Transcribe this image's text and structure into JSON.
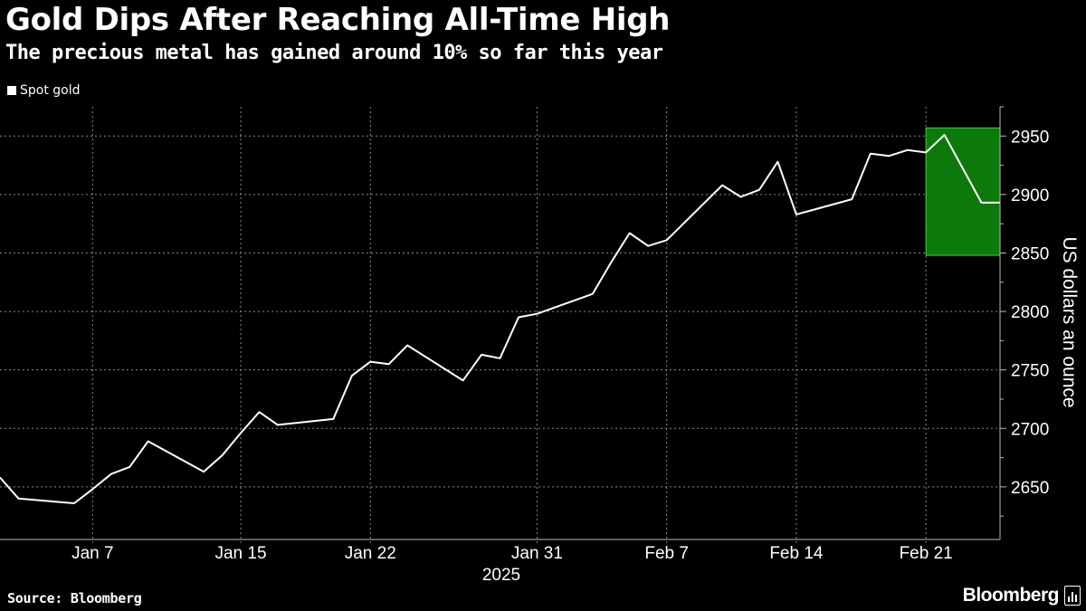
{
  "header": {
    "title": "Gold Dips After Reaching All-Time High",
    "subtitle": "The precious metal has gained around 10% so far this year"
  },
  "footer": {
    "source": "Source: Bloomberg",
    "brand": "Bloomberg"
  },
  "colors": {
    "background": "#000000",
    "line": "#ffffff",
    "highlight_fill": "#0b7a0b",
    "highlight_stroke": "#3cd13c",
    "grid": "#8a8a8a"
  },
  "chart_data": {
    "type": "line",
    "title": "Gold Dips After Reaching All-Time High",
    "subtitle": "The precious metal has gained around 10% so far this year",
    "ylabel": "US dollars an ounce",
    "xlabel": "2025",
    "ylim": [
      2605,
      2975
    ],
    "y_ticks": [
      2650,
      2700,
      2750,
      2800,
      2850,
      2900,
      2950
    ],
    "x_ticks": [
      {
        "date": "2025-01-07",
        "label": "Jan 7"
      },
      {
        "date": "2025-01-15",
        "label": "Jan 15"
      },
      {
        "date": "2025-01-22",
        "label": "Jan 22"
      },
      {
        "date": "2025-01-31",
        "label": "Jan 31"
      },
      {
        "date": "2025-02-07",
        "label": "Feb 7"
      },
      {
        "date": "2025-02-14",
        "label": "Feb 14"
      },
      {
        "date": "2025-02-21",
        "label": "Feb 21"
      }
    ],
    "x_range": [
      "2025-01-02",
      "2025-02-25"
    ],
    "year_label": "2025",
    "grid": true,
    "legend_position": "top-left",
    "series": [
      {
        "name": "Spot gold",
        "color": "#ffffff",
        "points": [
          {
            "x": "2025-01-02",
            "y": 2658
          },
          {
            "x": "2025-01-03",
            "y": 2640
          },
          {
            "x": "2025-01-06",
            "y": 2636
          },
          {
            "x": "2025-01-07",
            "y": 2648
          },
          {
            "x": "2025-01-08",
            "y": 2661
          },
          {
            "x": "2025-01-09",
            "y": 2667
          },
          {
            "x": "2025-01-10",
            "y": 2689
          },
          {
            "x": "2025-01-13",
            "y": 2663
          },
          {
            "x": "2025-01-14",
            "y": 2677
          },
          {
            "x": "2025-01-15",
            "y": 2696
          },
          {
            "x": "2025-01-16",
            "y": 2714
          },
          {
            "x": "2025-01-17",
            "y": 2703
          },
          {
            "x": "2025-01-20",
            "y": 2708
          },
          {
            "x": "2025-01-21",
            "y": 2745
          },
          {
            "x": "2025-01-22",
            "y": 2757
          },
          {
            "x": "2025-01-23",
            "y": 2755
          },
          {
            "x": "2025-01-24",
            "y": 2771
          },
          {
            "x": "2025-01-27",
            "y": 2741
          },
          {
            "x": "2025-01-28",
            "y": 2763
          },
          {
            "x": "2025-01-29",
            "y": 2760
          },
          {
            "x": "2025-01-30",
            "y": 2795
          },
          {
            "x": "2025-01-31",
            "y": 2798
          },
          {
            "x": "2025-02-03",
            "y": 2815
          },
          {
            "x": "2025-02-04",
            "y": 2842
          },
          {
            "x": "2025-02-05",
            "y": 2867
          },
          {
            "x": "2025-02-06",
            "y": 2856
          },
          {
            "x": "2025-02-07",
            "y": 2861
          },
          {
            "x": "2025-02-10",
            "y": 2908
          },
          {
            "x": "2025-02-11",
            "y": 2898
          },
          {
            "x": "2025-02-12",
            "y": 2904
          },
          {
            "x": "2025-02-13",
            "y": 2928
          },
          {
            "x": "2025-02-14",
            "y": 2883
          },
          {
            "x": "2025-02-17",
            "y": 2896
          },
          {
            "x": "2025-02-18",
            "y": 2935
          },
          {
            "x": "2025-02-19",
            "y": 2933
          },
          {
            "x": "2025-02-20",
            "y": 2938
          },
          {
            "x": "2025-02-21",
            "y": 2936
          },
          {
            "x": "2025-02-22",
            "y": 2951
          },
          {
            "x": "2025-02-24",
            "y": 2893
          },
          {
            "x": "2025-02-25",
            "y": 2893
          }
        ]
      }
    ],
    "highlight": {
      "x_start": "2025-02-21",
      "x_end": "2025-02-25",
      "y_low": 2848,
      "y_high": 2957
    }
  }
}
